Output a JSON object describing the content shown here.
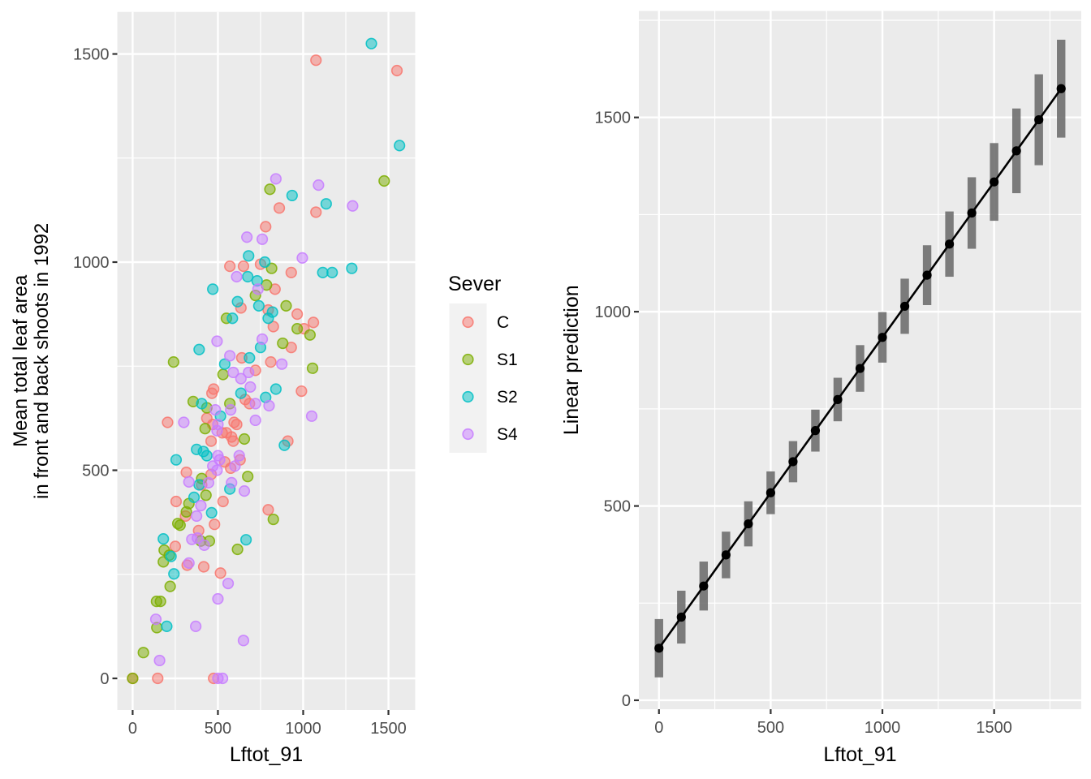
{
  "figure": {
    "background": "#FFFFFF",
    "panel_bg": "#EBEBEB",
    "grid_color": "#FFFFFF",
    "tick_color": "#333333",
    "tick_label_color": "#4D4D4D",
    "axis_title_color": "#000000",
    "legend_key_bg": "#F2F2F2"
  },
  "chart_data": [
    {
      "type": "scatter",
      "title": "",
      "xlabel": "Lftot_91",
      "ylabel_line1": "Mean total leaf area",
      "ylabel_line2": "in front and back shoots in 1992",
      "x_ticks": [
        0,
        500,
        1000,
        1500
      ],
      "y_ticks": [
        0,
        500,
        1000,
        1500
      ],
      "xlim": [
        -90,
        1657
      ],
      "ylim": [
        -76,
        1601
      ],
      "grid": true,
      "legend": {
        "title": "Sever",
        "position": "right",
        "entries": [
          {
            "label": "C",
            "color": "#F8766D"
          },
          {
            "label": "S1",
            "color": "#7CAE00"
          },
          {
            "label": "S2",
            "color": "#00BFC4"
          },
          {
            "label": "S4",
            "color": "#C77CFF"
          }
        ]
      },
      "series": [
        {
          "name": "C",
          "color": "#F8766D",
          "points": [
            [
              1075,
              1485
            ],
            [
              1550,
              1460
            ],
            [
              860,
              1130
            ],
            [
              1075,
              1120
            ],
            [
              780,
              1085
            ],
            [
              570,
              990
            ],
            [
              650,
              990
            ],
            [
              750,
              995
            ],
            [
              930,
              975
            ],
            [
              835,
              935
            ],
            [
              635,
              890
            ],
            [
              795,
              885
            ],
            [
              965,
              875
            ],
            [
              1060,
              855
            ],
            [
              825,
              845
            ],
            [
              1005,
              840
            ],
            [
              640,
              770
            ],
            [
              930,
              795
            ],
            [
              810,
              760
            ],
            [
              720,
              740
            ],
            [
              475,
              695
            ],
            [
              465,
              685
            ],
            [
              660,
              670
            ],
            [
              685,
              660
            ],
            [
              990,
              690
            ],
            [
              435,
              625
            ],
            [
              205,
              615
            ],
            [
              470,
              610
            ],
            [
              550,
              590
            ],
            [
              595,
              615
            ],
            [
              610,
              610
            ],
            [
              460,
              570
            ],
            [
              525,
              590
            ],
            [
              580,
              580
            ],
            [
              590,
              570
            ],
            [
              910,
              570
            ],
            [
              540,
              520
            ],
            [
              630,
              525
            ],
            [
              575,
              505
            ],
            [
              315,
              495
            ],
            [
              460,
              490
            ],
            [
              405,
              465
            ],
            [
              255,
              425
            ],
            [
              530,
              425
            ],
            [
              310,
              390
            ],
            [
              387,
              355
            ],
            [
              480,
              370
            ],
            [
              795,
              405
            ],
            [
              250,
              317
            ],
            [
              320,
              272
            ],
            [
              417,
              268
            ],
            [
              515,
              253
            ],
            [
              147,
              0
            ],
            [
              475,
              0
            ],
            [
              0,
              0
            ]
          ]
        },
        {
          "name": "S1",
          "color": "#7CAE00",
          "points": [
            [
              805,
              1175
            ],
            [
              1475,
              1195
            ],
            [
              815,
              985
            ],
            [
              785,
              945
            ],
            [
              720,
              920
            ],
            [
              900,
              895
            ],
            [
              550,
              865
            ],
            [
              965,
              840
            ],
            [
              1040,
              825
            ],
            [
              880,
              805
            ],
            [
              240,
              760
            ],
            [
              530,
              730
            ],
            [
              570,
              660
            ],
            [
              655,
              575
            ],
            [
              355,
              665
            ],
            [
              435,
              650
            ],
            [
              425,
              600
            ],
            [
              1055,
              745
            ],
            [
              675,
              485
            ],
            [
              405,
              480
            ],
            [
              330,
              420
            ],
            [
              430,
              440
            ],
            [
              315,
              400
            ],
            [
              265,
              372
            ],
            [
              278,
              368
            ],
            [
              400,
              330
            ],
            [
              450,
              330
            ],
            [
              615,
              310
            ],
            [
              185,
              308
            ],
            [
              215,
              296
            ],
            [
              180,
              280
            ],
            [
              220,
              221
            ],
            [
              825,
              382
            ],
            [
              140,
              185
            ],
            [
              163,
              185
            ],
            [
              142,
              122
            ],
            [
              63,
              62
            ],
            [
              0,
              0
            ]
          ]
        },
        {
          "name": "S2",
          "color": "#00BFC4",
          "points": [
            [
              1400,
              1525
            ],
            [
              1565,
              1280
            ],
            [
              935,
              1160
            ],
            [
              1135,
              1140
            ],
            [
              680,
              1015
            ],
            [
              775,
              1000
            ],
            [
              1115,
              975
            ],
            [
              1170,
              975
            ],
            [
              1285,
              985
            ],
            [
              730,
              955
            ],
            [
              740,
              895
            ],
            [
              820,
              880
            ],
            [
              795,
              865
            ],
            [
              585,
              865
            ],
            [
              615,
              905
            ],
            [
              470,
              935
            ],
            [
              675,
              965
            ],
            [
              390,
              790
            ],
            [
              750,
              795
            ],
            [
              685,
              770
            ],
            [
              540,
              755
            ],
            [
              635,
              685
            ],
            [
              840,
              695
            ],
            [
              780,
              675
            ],
            [
              405,
              660
            ],
            [
              515,
              630
            ],
            [
              375,
              550
            ],
            [
              415,
              545
            ],
            [
              435,
              535
            ],
            [
              255,
              525
            ],
            [
              890,
              560
            ],
            [
              390,
              465
            ],
            [
              570,
              455
            ],
            [
              360,
              435
            ],
            [
              463,
              398
            ],
            [
              665,
              333
            ],
            [
              242,
              251
            ],
            [
              225,
              293
            ],
            [
              200,
              125
            ],
            [
              180,
              335
            ]
          ]
        },
        {
          "name": "S4",
          "color": "#C77CFF",
          "points": [
            [
              670,
              1060
            ],
            [
              840,
              1200
            ],
            [
              1090,
              1185
            ],
            [
              1290,
              1135
            ],
            [
              760,
              1055
            ],
            [
              995,
              1010
            ],
            [
              610,
              965
            ],
            [
              735,
              935
            ],
            [
              495,
              810
            ],
            [
              570,
              775
            ],
            [
              760,
              815
            ],
            [
              875,
              755
            ],
            [
              590,
              735
            ],
            [
              635,
              720
            ],
            [
              680,
              735
            ],
            [
              690,
              700
            ],
            [
              720,
              660
            ],
            [
              800,
              655
            ],
            [
              720,
              620
            ],
            [
              1050,
              630
            ],
            [
              485,
              645
            ],
            [
              575,
              645
            ],
            [
              300,
              615
            ],
            [
              500,
              610
            ],
            [
              495,
              595
            ],
            [
              500,
              535
            ],
            [
              510,
              525
            ],
            [
              625,
              535
            ],
            [
              470,
              510
            ],
            [
              495,
              500
            ],
            [
              600,
              510
            ],
            [
              330,
              472
            ],
            [
              445,
              470
            ],
            [
              580,
              470
            ],
            [
              655,
              450
            ],
            [
              400,
              415
            ],
            [
              375,
              390
            ],
            [
              347,
              334
            ],
            [
              380,
              337
            ],
            [
              420,
              320
            ],
            [
              330,
              277
            ],
            [
              560,
              228
            ],
            [
              500,
              191
            ],
            [
              136,
              142
            ],
            [
              370,
              125
            ],
            [
              650,
              91
            ],
            [
              158,
              43
            ],
            [
              500,
              0
            ],
            [
              527,
              0
            ]
          ]
        }
      ]
    },
    {
      "type": "line-errorbar",
      "title": "",
      "xlabel": "Lftot_91",
      "ylabel": "Linear prediction",
      "x_ticks": [
        0,
        500,
        1000,
        1500
      ],
      "y_ticks": [
        0,
        500,
        1000,
        1500
      ],
      "xlim": [
        -90,
        1890
      ],
      "ylim": [
        -23,
        1774
      ],
      "grid": true,
      "point_color": "#000000",
      "line_color": "#000000",
      "bar_color": "#6F6F6F",
      "x": [
        0,
        100,
        200,
        300,
        400,
        500,
        600,
        700,
        800,
        900,
        1000,
        1100,
        1200,
        1300,
        1400,
        1500,
        1600,
        1700,
        1800
      ],
      "fit": [
        134,
        214,
        294,
        374,
        454,
        534,
        614,
        694,
        774,
        854,
        934,
        1014,
        1094,
        1174,
        1254,
        1334,
        1414,
        1494,
        1574
      ],
      "lo": [
        59,
        146,
        231,
        314,
        396,
        479,
        561,
        640,
        718,
        794,
        869,
        943,
        1017,
        1090,
        1162,
        1234,
        1305,
        1377,
        1448
      ],
      "hi": [
        209,
        282,
        357,
        434,
        512,
        589,
        667,
        748,
        830,
        914,
        999,
        1085,
        1171,
        1258,
        1346,
        1434,
        1523,
        1611,
        1700
      ]
    }
  ]
}
